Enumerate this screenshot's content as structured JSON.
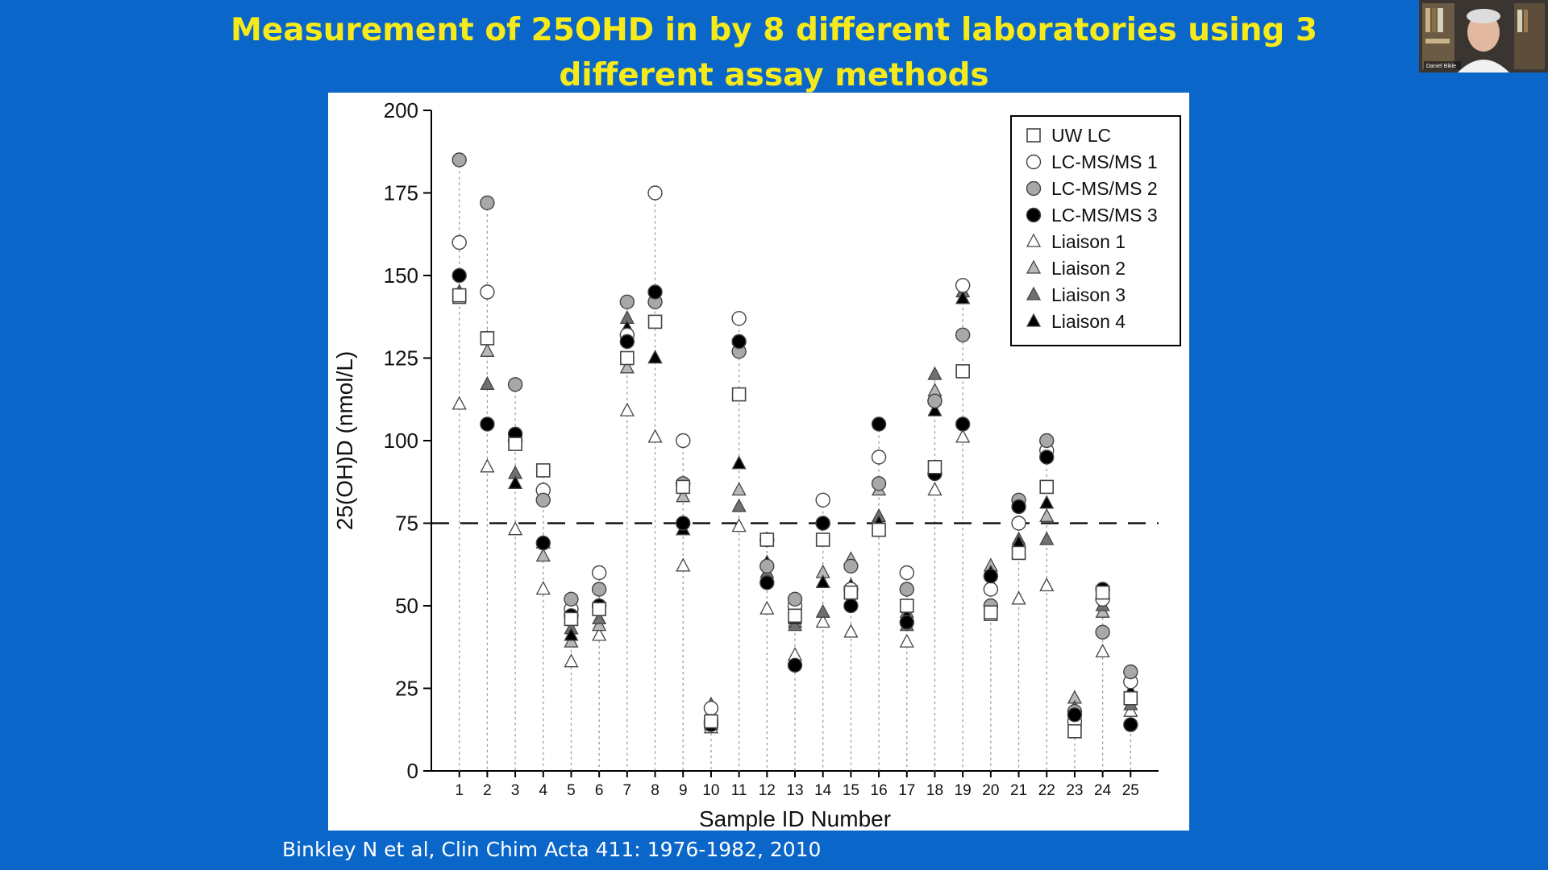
{
  "slide": {
    "title": "Measurement of 25OHD in by 8 different laboratories using 3 different assay methods",
    "citation": "Binkley N et al, Clin Chim Acta 411: 1976-1982, 2010"
  },
  "webcam": {
    "name": "Daniel Bikle"
  },
  "chart_data": {
    "type": "scatter",
    "title": "",
    "xlabel": "Sample ID Number",
    "ylabel": "25(OH)D (nmol/L)",
    "xlim": [
      0,
      26
    ],
    "ylim": [
      0,
      200
    ],
    "yticks": [
      0,
      25,
      50,
      75,
      100,
      125,
      150,
      175,
      200
    ],
    "xticks": [
      1,
      2,
      3,
      4,
      5,
      6,
      7,
      8,
      9,
      10,
      11,
      12,
      13,
      14,
      15,
      16,
      17,
      18,
      19,
      20,
      21,
      22,
      23,
      24,
      25
    ],
    "reference_line": 75,
    "legend_position": "top-right",
    "x": [
      1,
      2,
      3,
      4,
      5,
      6,
      7,
      8,
      9,
      10,
      11,
      12,
      13,
      14,
      15,
      16,
      17,
      18,
      19,
      20,
      21,
      22,
      23,
      24,
      25
    ],
    "series": [
      {
        "name": "UW LC",
        "marker": "square",
        "fill": "#ffffff",
        "values": [
          144,
          131,
          99,
          91,
          46,
          49,
          125,
          136,
          86,
          15,
          114,
          70,
          47,
          70,
          54,
          73,
          50,
          92,
          121,
          48,
          66,
          86,
          12,
          54,
          22
        ]
      },
      {
        "name": "LC-MS/MS 1",
        "marker": "circle",
        "fill": "#ffffff",
        "values": [
          160,
          145,
          100,
          85,
          49,
          60,
          132,
          175,
          100,
          19,
          137,
          70,
          50,
          82,
          55,
          95,
          60,
          112,
          147,
          55,
          75,
          97,
          15,
          52,
          27
        ]
      },
      {
        "name": "LC-MS/MS 2",
        "marker": "circle",
        "fill": "#a8a8a8",
        "values": [
          185,
          172,
          117,
          82,
          52,
          55,
          142,
          142,
          87,
          15,
          127,
          62,
          52,
          75,
          62,
          87,
          55,
          112,
          132,
          50,
          82,
          100,
          18,
          42,
          30
        ]
      },
      {
        "name": "LC-MS/MS 3",
        "marker": "circle",
        "fill": "#000000",
        "values": [
          150,
          105,
          102,
          69,
          47,
          50,
          130,
          145,
          75,
          14,
          130,
          57,
          32,
          75,
          50,
          105,
          45,
          90,
          105,
          59,
          80,
          95,
          17,
          55,
          14
        ]
      },
      {
        "name": "Liaison 1",
        "marker": "triangle",
        "fill": "#ffffff",
        "values": [
          111,
          92,
          73,
          55,
          33,
          41,
          109,
          101,
          62,
          13,
          74,
          49,
          35,
          45,
          42,
          73,
          39,
          85,
          101,
          47,
          52,
          56,
          15,
          36,
          18
        ]
      },
      {
        "name": "Liaison 2",
        "marker": "triangle",
        "fill": "#b8b8b8",
        "values": [
          143,
          127,
          100,
          65,
          39,
          44,
          122,
          125,
          83,
          17,
          85,
          70,
          45,
          60,
          64,
          85,
          48,
          115,
          143,
          62,
          66,
          77,
          22,
          48,
          22
        ]
      },
      {
        "name": "Liaison 3",
        "marker": "triangle",
        "fill": "#707070",
        "values": [
          145,
          117,
          90,
          69,
          43,
          46,
          137,
          125,
          73,
          20,
          80,
          60,
          44,
          48,
          52,
          77,
          44,
          120,
          145,
          49,
          70,
          70,
          19,
          50,
          20
        ]
      },
      {
        "name": "Liaison 4",
        "marker": "triangle",
        "fill": "#000000",
        "values": [
          144,
          131,
          87,
          69,
          41,
          50,
          134,
          125,
          73,
          14,
          93,
          63,
          46,
          57,
          56,
          75,
          47,
          109,
          143,
          60,
          69,
          81,
          17,
          54,
          24
        ]
      }
    ]
  }
}
